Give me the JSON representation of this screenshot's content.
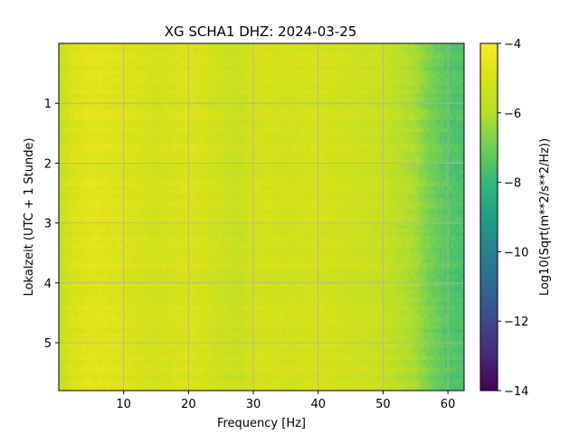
{
  "chart_data": {
    "type": "heatmap",
    "title": "XG SCHA1  DHZ: 2024-03-25",
    "xlabel": "Frequency [Hz]",
    "ylabel": "Lokalzeit (UTC + 1 Stunde)",
    "colorbar_label": "Log10(Sqrt(m**2/s**2/Hz))",
    "colormap": "viridis",
    "x_range": [
      0,
      62.5
    ],
    "y_range": [
      0,
      5.8
    ],
    "y_inverted": true,
    "color_range": [
      -14,
      -4
    ],
    "grid": true,
    "x_ticks": [
      10,
      20,
      30,
      40,
      50,
      60
    ],
    "x_tick_labels": [
      "10",
      "20",
      "30",
      "40",
      "50",
      "60"
    ],
    "y_ticks": [
      1,
      2,
      3,
      4,
      5
    ],
    "y_tick_labels": [
      "1",
      "2",
      "3",
      "4",
      "5"
    ],
    "colorbar_ticks": [
      -4,
      -6,
      -8,
      -10,
      -12,
      -14
    ],
    "colorbar_tick_labels": [
      "−4",
      "−6",
      "−8",
      "−10",
      "−12",
      "−14"
    ],
    "spectrum_profile": {
      "frequency_hz": [
        0,
        2,
        5,
        10,
        15,
        20,
        25,
        28,
        30,
        35,
        40,
        45,
        48,
        50,
        52,
        55,
        57,
        60,
        62.5
      ],
      "log10_amplitude": [
        -5.6,
        -5.0,
        -4.7,
        -4.9,
        -5.2,
        -4.9,
        -5.3,
        -5.5,
        -5.1,
        -5.2,
        -5.1,
        -5.3,
        -5.4,
        -5.5,
        -5.8,
        -6.2,
        -6.8,
        -7.4,
        -7.6
      ]
    }
  }
}
